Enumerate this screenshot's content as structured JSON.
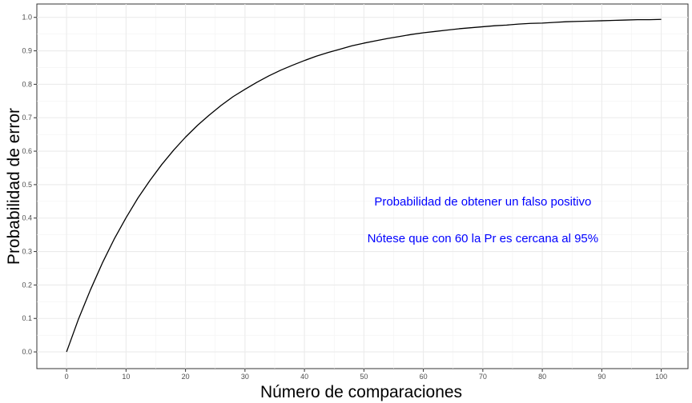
{
  "chart_data": {
    "type": "line",
    "xlabel": "Número de comparaciones",
    "ylabel": "Probabilidad de error",
    "xlim": [
      -5,
      104.5
    ],
    "ylim": [
      -0.05,
      1.04
    ],
    "x_ticks": [
      0,
      10,
      20,
      30,
      40,
      50,
      60,
      70,
      80,
      90,
      100
    ],
    "y_ticks": [
      0.0,
      0.1,
      0.2,
      0.3,
      0.4,
      0.5,
      0.6,
      0.7,
      0.8,
      0.9,
      1.0
    ],
    "y_tick_labels": [
      "0.0",
      "0.1",
      "0.2",
      "0.3",
      "0.4",
      "0.5",
      "0.6",
      "0.7",
      "0.8",
      "0.9",
      "1.0"
    ],
    "grid": true,
    "series": [
      {
        "color": "#000000",
        "x": [
          0,
          2,
          4,
          6,
          8,
          10,
          12,
          14,
          16,
          18,
          20,
          22,
          24,
          26,
          28,
          30,
          32,
          34,
          36,
          38,
          40,
          42,
          44,
          46,
          48,
          50,
          52,
          54,
          56,
          58,
          60,
          62,
          64,
          66,
          68,
          70,
          72,
          74,
          76,
          78,
          80,
          82,
          84,
          86,
          88,
          90,
          92,
          94,
          96,
          98,
          100
        ],
        "y": [
          0.0,
          0.098,
          0.185,
          0.265,
          0.337,
          0.401,
          0.46,
          0.512,
          0.56,
          0.603,
          0.642,
          0.677,
          0.708,
          0.737,
          0.763,
          0.785,
          0.806,
          0.825,
          0.842,
          0.857,
          0.871,
          0.884,
          0.895,
          0.905,
          0.915,
          0.923,
          0.93,
          0.937,
          0.943,
          0.949,
          0.954,
          0.958,
          0.962,
          0.966,
          0.969,
          0.972,
          0.975,
          0.977,
          0.98,
          0.982,
          0.983,
          0.985,
          0.987,
          0.988,
          0.989,
          0.99,
          0.991,
          0.992,
          0.993,
          0.993,
          0.994
        ]
      }
    ],
    "annotations": [
      {
        "text": "Probabilidad de obtener un falso positivo",
        "x": 70,
        "y": 0.45,
        "color": "#0000ff"
      },
      {
        "text": "Nótese que con 60 la Pr es cercana al 95%",
        "x": 70,
        "y": 0.34,
        "color": "#0000ff"
      }
    ]
  }
}
